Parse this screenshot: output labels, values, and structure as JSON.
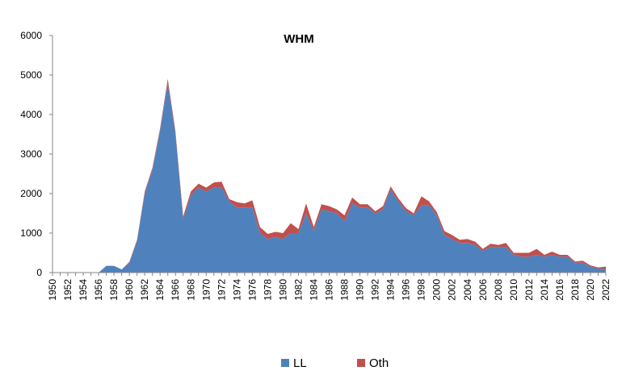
{
  "chart_data": {
    "type": "area",
    "stacked": true,
    "title": "WHM",
    "xlabel": "",
    "ylabel": "",
    "ylim": [
      0,
      6000
    ],
    "yticks": [
      0,
      1000,
      2000,
      3000,
      4000,
      5000,
      6000
    ],
    "x": [
      1950,
      1951,
      1952,
      1953,
      1954,
      1955,
      1956,
      1957,
      1958,
      1959,
      1960,
      1961,
      1962,
      1963,
      1964,
      1965,
      1966,
      1967,
      1968,
      1969,
      1970,
      1971,
      1972,
      1973,
      1974,
      1975,
      1976,
      1977,
      1978,
      1979,
      1980,
      1981,
      1982,
      1983,
      1984,
      1985,
      1986,
      1987,
      1988,
      1989,
      1990,
      1991,
      1992,
      1993,
      1994,
      1995,
      1996,
      1997,
      1998,
      1999,
      2000,
      2001,
      2002,
      2003,
      2004,
      2005,
      2006,
      2007,
      2008,
      2009,
      2010,
      2011,
      2012,
      2013,
      2014,
      2015,
      2016,
      2017,
      2018,
      2019,
      2020,
      2021,
      2022
    ],
    "xtick_labels": [
      "1950",
      "1952",
      "1954",
      "1956",
      "1958",
      "1960",
      "1962",
      "1964",
      "1966",
      "1968",
      "1970",
      "1972",
      "1974",
      "1976",
      "1978",
      "1980",
      "1982",
      "1984",
      "1986",
      "1988",
      "1990",
      "1992",
      "1994",
      "1996",
      "1998",
      "2000",
      "2002",
      "2004",
      "2006",
      "2008",
      "2010",
      "2012",
      "2014",
      "2016",
      "2018",
      "2020",
      "2022"
    ],
    "grid": false,
    "legend_position": "bottom",
    "series": [
      {
        "name": "LL",
        "color": "#4f81bd",
        "values": [
          0,
          0,
          0,
          0,
          0,
          0,
          0,
          170,
          170,
          80,
          250,
          800,
          2000,
          2600,
          3600,
          4800,
          3500,
          1350,
          1950,
          2150,
          2050,
          2150,
          2150,
          1800,
          1650,
          1650,
          1650,
          1000,
          850,
          900,
          850,
          1000,
          1000,
          1500,
          1050,
          1600,
          1550,
          1500,
          1300,
          1750,
          1650,
          1650,
          1500,
          1600,
          2100,
          1800,
          1550,
          1450,
          1700,
          1700,
          1450,
          950,
          850,
          750,
          750,
          700,
          550,
          650,
          650,
          650,
          450,
          400,
          400,
          450,
          400,
          450,
          400,
          400,
          250,
          250,
          150,
          100,
          100
        ]
      },
      {
        "name": "Oth",
        "color": "#c0504d",
        "values": [
          0,
          0,
          0,
          0,
          0,
          0,
          0,
          0,
          0,
          0,
          20,
          30,
          50,
          50,
          50,
          100,
          70,
          70,
          100,
          100,
          100,
          130,
          150,
          60,
          130,
          100,
          180,
          150,
          130,
          130,
          150,
          250,
          100,
          250,
          100,
          130,
          130,
          100,
          150,
          150,
          80,
          80,
          50,
          80,
          80,
          80,
          80,
          50,
          230,
          100,
          80,
          100,
          100,
          80,
          100,
          80,
          50,
          80,
          50,
          100,
          50,
          100,
          100,
          150,
          50,
          80,
          50,
          50,
          30,
          50,
          30,
          30,
          50
        ]
      }
    ]
  }
}
